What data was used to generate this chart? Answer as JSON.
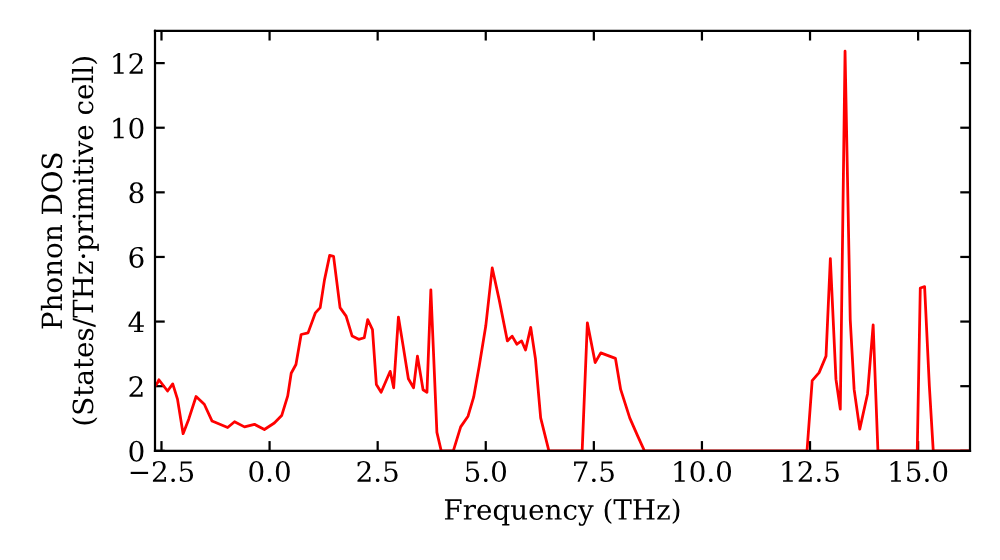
{
  "chart_data": {
    "type": "line",
    "xlabel": "Frequency (THz)",
    "ylabel": "Phonon DOS\n(States/THz·primitive cell)",
    "x": [
      -2.65,
      -2.59,
      -2.56,
      -2.36,
      -2.24,
      -2.13,
      -2.0,
      -1.87,
      -1.7,
      -1.51,
      -1.33,
      -0.97,
      -0.81,
      -0.58,
      -0.35,
      -0.12,
      0.11,
      0.28,
      0.42,
      0.5,
      0.61,
      0.73,
      0.89,
      1.06,
      1.17,
      1.27,
      1.39,
      1.48,
      1.63,
      1.77,
      1.91,
      2.06,
      2.19,
      2.27,
      2.38,
      2.47,
      2.58,
      2.79,
      2.87,
      2.98,
      3.09,
      3.21,
      3.33,
      3.42,
      3.55,
      3.64,
      3.73,
      3.87,
      3.97,
      4.25,
      4.42,
      4.59,
      4.72,
      4.85,
      5.0,
      5.15,
      5.31,
      5.5,
      5.61,
      5.72,
      5.83,
      5.92,
      6.04,
      6.15,
      6.27,
      6.46,
      7.23,
      7.35,
      7.53,
      7.66,
      8.0,
      8.12,
      8.33,
      8.51,
      8.67,
      12.43,
      12.55,
      12.71,
      12.87,
      12.97,
      13.1,
      13.2,
      13.31,
      13.43,
      13.52,
      13.65,
      13.83,
      13.96,
      14.07,
      14.98,
      15.05,
      15.15,
      15.26,
      15.35,
      16.2
    ],
    "series": [
      {
        "color": "#ff0000",
        "values": [
          2.0,
          2.11,
          2.2,
          1.85,
          2.07,
          1.6,
          0.53,
          0.98,
          1.68,
          1.44,
          0.92,
          0.72,
          0.9,
          0.74,
          0.82,
          0.66,
          0.86,
          1.09,
          1.7,
          2.4,
          2.67,
          3.6,
          3.65,
          4.27,
          4.43,
          5.29,
          6.05,
          6.02,
          4.43,
          4.17,
          3.55,
          3.45,
          3.5,
          4.06,
          3.75,
          2.05,
          1.81,
          2.46,
          1.95,
          4.14,
          3.24,
          2.23,
          1.95,
          2.93,
          1.89,
          1.81,
          4.98,
          0.57,
          0,
          0,
          0.74,
          1.07,
          1.66,
          2.63,
          3.86,
          5.66,
          4.68,
          3.4,
          3.55,
          3.3,
          3.4,
          3.12,
          3.82,
          2.84,
          1.02,
          0,
          0,
          3.96,
          2.73,
          3.03,
          2.86,
          1.9,
          1.02,
          0.47,
          0,
          0,
          2.17,
          2.42,
          2.93,
          5.95,
          2.21,
          1.29,
          12.37,
          4.06,
          1.9,
          0.67,
          1.76,
          3.9,
          0,
          0,
          5.04,
          5.08,
          2.0,
          0,
          0
        ]
      }
    ],
    "xlim": [
      -2.65,
      16.2
    ],
    "ylim": [
      0,
      13
    ],
    "xticks": [
      {
        "value": -2.5,
        "label": "−2.5"
      },
      {
        "value": 0,
        "label": "0.0"
      },
      {
        "value": 2.5,
        "label": "2.5"
      },
      {
        "value": 5,
        "label": "5.0"
      },
      {
        "value": 7.5,
        "label": "7.5"
      },
      {
        "value": 10,
        "label": "10.0"
      },
      {
        "value": 12.5,
        "label": "12.5"
      },
      {
        "value": 15,
        "label": "15.0"
      }
    ],
    "yticks": [
      0,
      2,
      4,
      6,
      8,
      10,
      12
    ],
    "grid": false,
    "marker": "none",
    "line_style": "solid"
  }
}
